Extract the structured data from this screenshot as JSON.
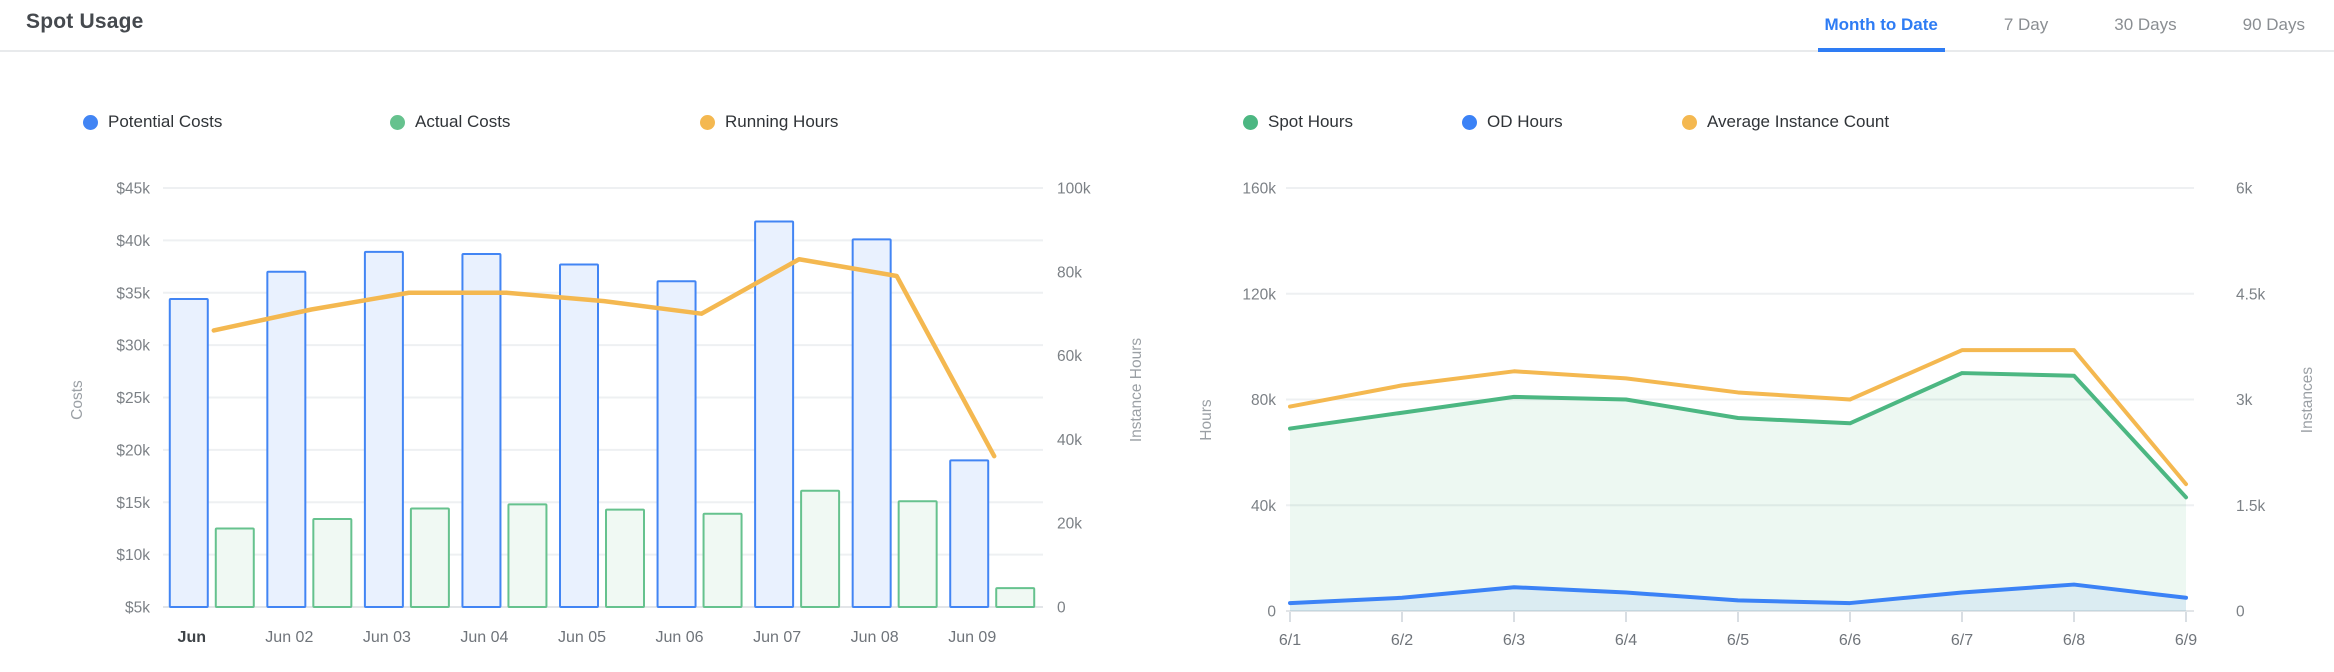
{
  "header": {
    "title": "Spot Usage",
    "tabs": [
      {
        "label": "Month to Date",
        "active": true
      },
      {
        "label": "7 Day",
        "active": false
      },
      {
        "label": "30 Days",
        "active": false
      },
      {
        "label": "90 Days",
        "active": false
      }
    ],
    "active_tab_color": "#2e7cf4"
  },
  "colors": {
    "blue": "#4285f4",
    "green": "#4cb782",
    "orange": "#f4b850",
    "grid": "#eef0f2",
    "axis_text": "#7c8186",
    "axis_title_text": "#9ba0a5",
    "x_label_text": "#6f747a"
  },
  "chart_data": [
    {
      "type": "bar",
      "categories": [
        "Jun",
        "Jun 02",
        "Jun 03",
        "Jun 04",
        "Jun 05",
        "Jun 06",
        "Jun 07",
        "Jun 08",
        "Jun 09"
      ],
      "series": [
        {
          "name": "Potential Costs",
          "type": "bar",
          "axis": "left",
          "unit": "USD thousands",
          "color": "#4285f4",
          "fill": "#e9f1fe",
          "values": [
            34.4,
            37.0,
            38.9,
            38.7,
            37.7,
            36.1,
            41.8,
            40.1,
            19.0
          ]
        },
        {
          "name": "Actual Costs",
          "type": "bar",
          "axis": "left",
          "unit": "USD thousands",
          "color": "#66c28e",
          "fill": "#f0f9f3",
          "values": [
            12.5,
            13.4,
            14.4,
            14.8,
            14.3,
            13.9,
            16.1,
            15.1,
            6.8
          ]
        },
        {
          "name": "Running Hours",
          "type": "line",
          "axis": "right",
          "unit": "instance hours thousands",
          "color": "#f4b850",
          "values": [
            66,
            71,
            75,
            75,
            73,
            70,
            83,
            79,
            36
          ]
        }
      ],
      "left_axis": {
        "title": "Costs",
        "tick_labels": [
          "$45k",
          "$40k",
          "$35k",
          "$30k",
          "$25k",
          "$20k",
          "$15k",
          "$10k",
          "$5k"
        ],
        "min": 5,
        "max": 45
      },
      "right_axis": {
        "title": "Instance Hours",
        "tick_labels": [
          "100k",
          "80k",
          "60k",
          "40k",
          "20k",
          "0"
        ],
        "min": 0,
        "max": 100
      },
      "grid": true,
      "legend_position": "top"
    },
    {
      "type": "area",
      "x": [
        "6/1",
        "6/2",
        "6/3",
        "6/4",
        "6/5",
        "6/6",
        "6/7",
        "6/8",
        "6/9"
      ],
      "series": [
        {
          "name": "Spot Hours",
          "type": "area",
          "axis": "left",
          "unit": "hours thousands",
          "color": "#4cb782",
          "fill": "rgba(82,183,130,0.10)",
          "values": [
            69,
            75,
            81,
            80,
            73,
            71,
            90,
            89,
            43
          ]
        },
        {
          "name": "OD Hours",
          "type": "area",
          "axis": "left",
          "unit": "hours thousands",
          "color": "#3b82f6",
          "fill": "rgba(66,133,244,0.10)",
          "values": [
            3,
            5,
            9,
            7,
            4,
            3,
            7,
            10,
            5
          ]
        },
        {
          "name": "Average Instance Count",
          "type": "line",
          "axis": "right",
          "unit": "instances thousands",
          "color": "#f4b850",
          "values": [
            2.9,
            3.2,
            3.4,
            3.3,
            3.1,
            3.0,
            3.7,
            3.7,
            1.8
          ]
        }
      ],
      "left_axis": {
        "title": "Hours",
        "tick_labels": [
          "160k",
          "120k",
          "80k",
          "40k",
          "0"
        ],
        "min": 0,
        "max": 160
      },
      "right_axis": {
        "title": "Instances",
        "tick_labels": [
          "6k",
          "4.5k",
          "3k",
          "1.5k",
          "0"
        ],
        "min": 0,
        "max": 6
      },
      "grid": true,
      "legend_position": "top"
    }
  ]
}
